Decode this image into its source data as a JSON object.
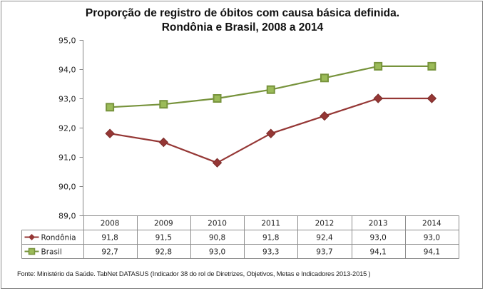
{
  "chart_data": {
    "type": "line",
    "title": "Proporção de registro de óbitos com causa básica definida.",
    "subtitle": "Rondônia e Brasil, 2008 a 2014",
    "xlabel": "",
    "ylabel": "",
    "ylim": [
      89.0,
      95.0
    ],
    "yticks": [
      "89,0",
      "90,0",
      "91,0",
      "92,0",
      "93,0",
      "94,0",
      "95,0"
    ],
    "grid": false,
    "legend_placement": "data-table-left",
    "categories": [
      "2008",
      "2009",
      "2010",
      "2011",
      "2012",
      "2013",
      "2014"
    ],
    "series": [
      {
        "name": "Rondônia",
        "values": [
          91.8,
          91.5,
          90.8,
          91.8,
          92.4,
          93.0,
          93.0
        ],
        "labels": [
          "91,8",
          "91,5",
          "90,8",
          "91,8",
          "92,4",
          "93,0",
          "93,0"
        ],
        "color": "#953735",
        "marker": "diamond"
      },
      {
        "name": "Brasil",
        "values": [
          92.7,
          92.8,
          93.0,
          93.3,
          93.7,
          94.1,
          94.1
        ],
        "labels": [
          "92,7",
          "92,8",
          "93,0",
          "93,3",
          "93,7",
          "94,1",
          "94,1"
        ],
        "color": "#77933c",
        "marker": "square",
        "marker_fill": "#9bbb59"
      }
    ],
    "source": "Fonte: Ministério da Saúde. TabNet DATASUS (Indicador 38 do rol de Diretrizes, Objetivos, Metas e Indicadores 2013-2015 )"
  }
}
